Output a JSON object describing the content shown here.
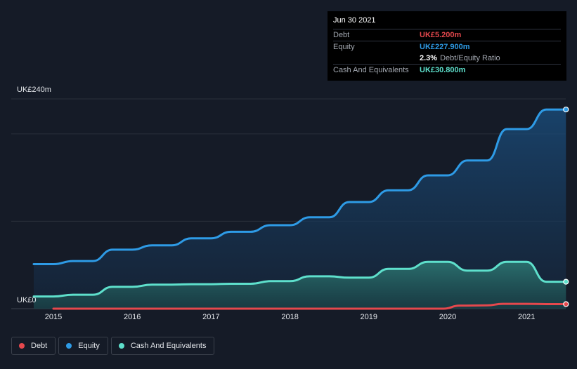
{
  "chart_data": {
    "type": "area",
    "y_axis": {
      "top_label": "UK£240m",
      "bottom_label": "UK£0",
      "ylim": [
        0,
        240
      ]
    },
    "x_ticks": [
      "2015",
      "2016",
      "2017",
      "2018",
      "2019",
      "2020",
      "2021"
    ],
    "series": [
      {
        "name": "Debt",
        "color": "#e5484d",
        "points": [
          [
            2015.0,
            0
          ],
          [
            2019.95,
            0
          ],
          [
            2020.15,
            3.5
          ],
          [
            2020.5,
            3.8
          ],
          [
            2020.7,
            5.5
          ],
          [
            2021.0,
            5.5
          ],
          [
            2021.25,
            5.2
          ],
          [
            2021.5,
            5.2
          ]
        ]
      },
      {
        "name": "Equity",
        "color": "#2e9be6",
        "points": [
          [
            2014.75,
            51
          ],
          [
            2015.0,
            51
          ],
          [
            2015.25,
            54.5
          ],
          [
            2015.5,
            54.5
          ],
          [
            2015.75,
            67.5
          ],
          [
            2016.0,
            67.5
          ],
          [
            2016.25,
            72.5
          ],
          [
            2016.5,
            72.5
          ],
          [
            2016.75,
            80.5
          ],
          [
            2017.0,
            80.5
          ],
          [
            2017.25,
            88
          ],
          [
            2017.5,
            88
          ],
          [
            2017.75,
            95.5
          ],
          [
            2018.0,
            95.5
          ],
          [
            2018.25,
            104.5
          ],
          [
            2018.5,
            104.5
          ],
          [
            2018.75,
            122
          ],
          [
            2019.0,
            122
          ],
          [
            2019.25,
            135.5
          ],
          [
            2019.5,
            135.5
          ],
          [
            2019.75,
            152.5
          ],
          [
            2020.0,
            152.5
          ],
          [
            2020.25,
            169.5
          ],
          [
            2020.5,
            169.5
          ],
          [
            2020.75,
            205.5
          ],
          [
            2021.0,
            205.5
          ],
          [
            2021.25,
            227.9
          ],
          [
            2021.5,
            227.9
          ]
        ]
      },
      {
        "name": "Cash And Equivalents",
        "color": "#5ee0cc",
        "points": [
          [
            2014.75,
            14
          ],
          [
            2015.0,
            14
          ],
          [
            2015.25,
            16
          ],
          [
            2015.5,
            16
          ],
          [
            2015.75,
            25
          ],
          [
            2016.0,
            25
          ],
          [
            2016.25,
            27.5
          ],
          [
            2016.5,
            27.5
          ],
          [
            2016.75,
            28
          ],
          [
            2017.0,
            28
          ],
          [
            2017.25,
            28.5
          ],
          [
            2017.5,
            28.5
          ],
          [
            2017.75,
            31.5
          ],
          [
            2018.0,
            31.5
          ],
          [
            2018.25,
            37
          ],
          [
            2018.5,
            37
          ],
          [
            2018.75,
            35.5
          ],
          [
            2019.0,
            35.5
          ],
          [
            2019.25,
            45.5
          ],
          [
            2019.5,
            45.5
          ],
          [
            2019.75,
            53.5
          ],
          [
            2020.0,
            53.5
          ],
          [
            2020.25,
            43.5
          ],
          [
            2020.5,
            43.5
          ],
          [
            2020.75,
            53.5
          ],
          [
            2021.0,
            53.5
          ],
          [
            2021.25,
            30.8
          ],
          [
            2021.5,
            30.8
          ]
        ]
      }
    ],
    "grid": true,
    "legend_position": "bottom-left"
  },
  "tooltip": {
    "date": "Jun 30 2021",
    "rows": [
      {
        "label": "Debt",
        "value": "UK£5.200m",
        "color": "#e5484d"
      },
      {
        "label": "Equity",
        "value": "UK£227.900m",
        "color": "#2e9be6"
      }
    ],
    "ratio": {
      "value": "2.3%",
      "label": "Debt/Equity Ratio"
    },
    "cash": {
      "label": "Cash And Equivalents",
      "value": "UK£30.800m",
      "color": "#5ee0cc"
    }
  },
  "legend": [
    {
      "label": "Debt",
      "color": "#e5484d"
    },
    {
      "label": "Equity",
      "color": "#2e9be6"
    },
    {
      "label": "Cash And Equivalents",
      "color": "#5ee0cc"
    }
  ]
}
